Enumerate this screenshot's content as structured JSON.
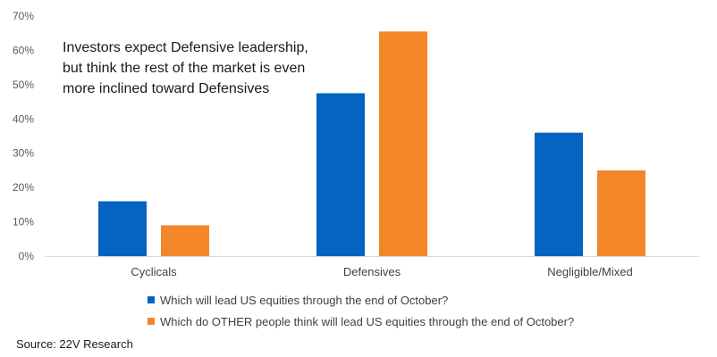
{
  "chart_data": {
    "type": "bar",
    "title": "",
    "xlabel": "",
    "ylabel": "",
    "ylim": [
      0,
      70
    ],
    "yticks": [
      0,
      10,
      20,
      30,
      40,
      50,
      60,
      70
    ],
    "ytick_labels": [
      "0%",
      "10%",
      "20%",
      "30%",
      "40%",
      "50%",
      "60%",
      "70%"
    ],
    "categories": [
      "Cyclicals",
      "Defensives",
      "Negligible/Mixed"
    ],
    "series": [
      {
        "name": "Which will lead US equities through the end of October?",
        "color": "#0563C1",
        "values": [
          16,
          47.5,
          36
        ]
      },
      {
        "name": "Which do OTHER people think will lead US equities through the end of October?",
        "color": "#F4862A",
        "values": [
          9,
          65.5,
          25
        ]
      }
    ],
    "grid": false,
    "legend_position": "bottom",
    "annotation": "Investors expect Defensive leadership,\nbut think the rest of the market is even\nmore inclined  toward Defensives"
  },
  "source": "Source: 22V Research"
}
